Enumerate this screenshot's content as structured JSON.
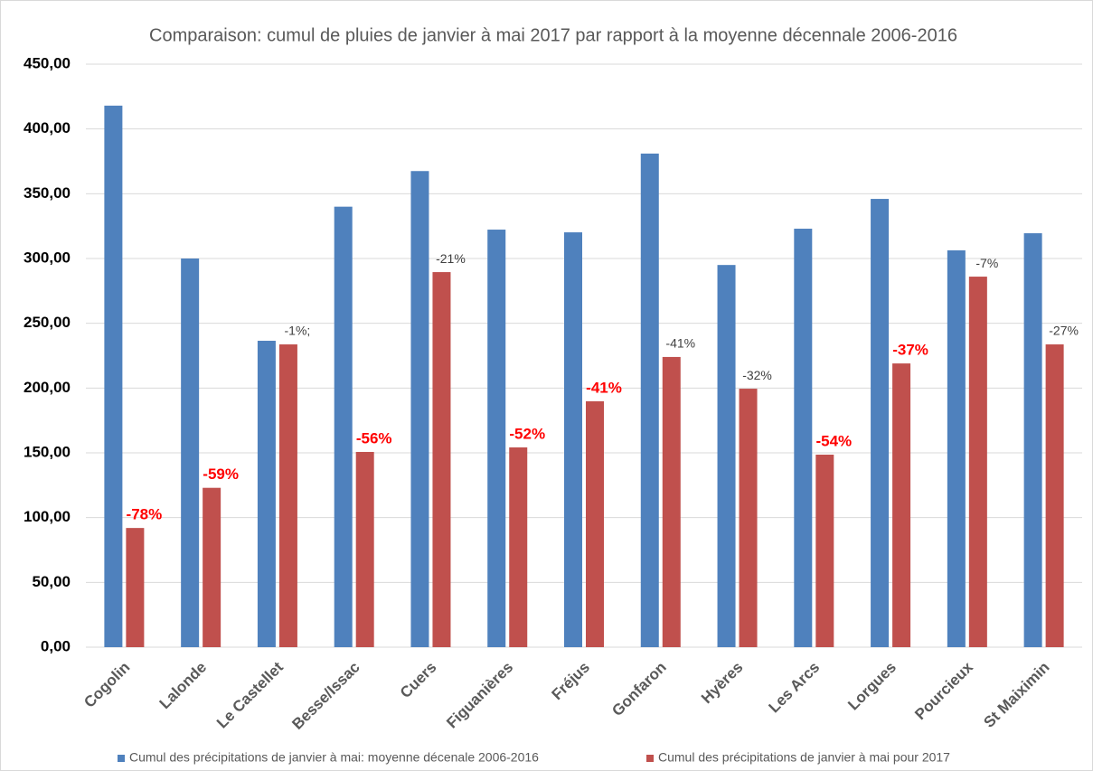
{
  "chart_data": {
    "type": "bar",
    "title": "Comparaison: cumul de pluies de janvier à mai 2017 par rapport à la moyenne décennale 2006-2016",
    "categories": [
      "Cogolin",
      "Lalonde",
      "Le Castellet",
      "Besse/Issac",
      "Cuers",
      "Figuanières",
      "Fréjus",
      "Gonfaron",
      "Hyères",
      "Les Arcs",
      "Lorgues",
      "Pourcieux",
      "St Maiximin"
    ],
    "series": [
      {
        "name": "Cumul des précipitations de janvier à mai: moyenne décenale 2006-2016",
        "color": "#4f81bd",
        "values": [
          418,
          300,
          236.5,
          340,
          367.5,
          322.3,
          320.2,
          381,
          295,
          323,
          346,
          306.3,
          319.5
        ]
      },
      {
        "name": "Cumul des précipitations de janvier à mai pour 2017",
        "color": "#c0504d",
        "values": [
          92,
          123,
          233.7,
          150.7,
          289.5,
          154.2,
          189.8,
          224,
          199.5,
          148.6,
          219,
          286,
          233.7
        ]
      }
    ],
    "annotations": [
      {
        "text": "-78%",
        "bold": true,
        "color": "#ff0000"
      },
      {
        "text": "-59%",
        "bold": true,
        "color": "#ff0000"
      },
      {
        "text": "-1%;",
        "bold": false,
        "color": "#404040"
      },
      {
        "text": "-56%",
        "bold": true,
        "color": "#ff0000"
      },
      {
        "text": "-21%",
        "bold": false,
        "color": "#404040"
      },
      {
        "text": "-52%",
        "bold": true,
        "color": "#ff0000"
      },
      {
        "text": "-41%",
        "bold": true,
        "color": "#ff0000"
      },
      {
        "text": "-41%",
        "bold": false,
        "color": "#404040"
      },
      {
        "text": "-32%",
        "bold": false,
        "color": "#404040"
      },
      {
        "text": "-54%",
        "bold": true,
        "color": "#ff0000"
      },
      {
        "text": "-37%",
        "bold": true,
        "color": "#ff0000"
      },
      {
        "text": "-7%",
        "bold": false,
        "color": "#404040"
      },
      {
        "text": "-27%",
        "bold": false,
        "color": "#404040"
      }
    ],
    "ylim": [
      0,
      450
    ],
    "yticks": [
      {
        "value": 0,
        "label": "0,00"
      },
      {
        "value": 50,
        "label": "50,00"
      },
      {
        "value": 100,
        "label": "100,00"
      },
      {
        "value": 150,
        "label": "150,00"
      },
      {
        "value": 200,
        "label": "200,00"
      },
      {
        "value": 250,
        "label": "250,00"
      },
      {
        "value": 300,
        "label": "300,00"
      },
      {
        "value": 350,
        "label": "350,00"
      },
      {
        "value": 400,
        "label": "400,00"
      },
      {
        "value": 450,
        "label": "450,00"
      }
    ],
    "grid": true,
    "legend": "bottom"
  }
}
